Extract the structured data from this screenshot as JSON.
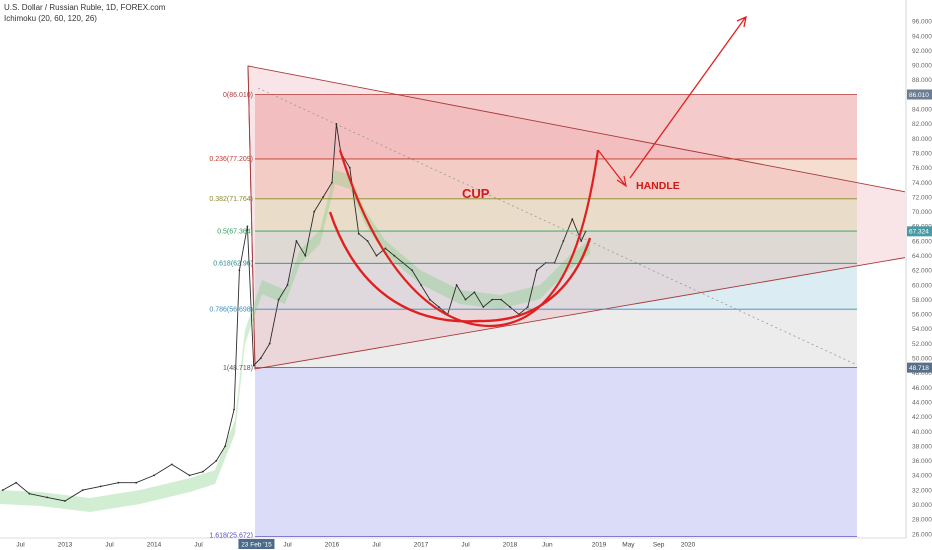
{
  "header": {
    "symbol_line": "U.S. Dollar / Russian Ruble, 1D, FOREX.com",
    "indicator_line": "Ichimoku (20, 60, 120, 26)"
  },
  "chart_data": {
    "type": "line",
    "title": "U.S. Dollar / Russian Ruble, 1D, FOREX.com",
    "ylim": [
      26,
      97
    ],
    "y_ticks": [
      "96.000",
      "94.000",
      "92.000",
      "90.000",
      "88.000",
      "86.000",
      "84.000",
      "82.000",
      "80.000",
      "78.000",
      "76.000",
      "74.000",
      "72.000",
      "70.000",
      "68.000",
      "66.000",
      "64.000",
      "62.000",
      "60.000",
      "58.000",
      "56.000",
      "54.000",
      "52.000",
      "50.000",
      "48.000",
      "46.000",
      "44.000",
      "42.000",
      "40.000",
      "38.000",
      "36.000",
      "34.000",
      "32.000",
      "30.000",
      "28.000",
      "26.000"
    ],
    "x_ticks": [
      "Jul",
      "2013",
      "Jul",
      "2014",
      "Jul",
      "23 Feb '15",
      "Jul",
      "2016",
      "Jul",
      "2017",
      "Jul",
      "2018",
      "Jun",
      "2019",
      "May",
      "Sep",
      "2020"
    ],
    "price_badges": [
      {
        "text": "86.010",
        "value": 86.01,
        "color": "#6b7c93"
      },
      {
        "text": "67.324",
        "value": 67.324,
        "color": "#4a9aa6"
      },
      {
        "text": "48.718",
        "value": 48.718,
        "color": "#5a6f8a"
      }
    ],
    "fib_levels": [
      {
        "label": "0(86.010)",
        "value": 86.01,
        "color": "#b03a3a",
        "zone": "#f2b8b8"
      },
      {
        "label": "0.236(77.209)",
        "value": 77.209,
        "color": "#c0392b",
        "zone": "#f1d2c0"
      },
      {
        "label": "0.382(71.764)",
        "value": 71.764,
        "color": "#8a8a2a",
        "zone": "#e2efc8"
      },
      {
        "label": "0.5(67.364)",
        "value": 67.364,
        "color": "#2e9d5a",
        "zone": "#cfe9da"
      },
      {
        "label": "0.618(62.96)",
        "value": 62.96,
        "color": "#2a8a8a",
        "zone": "#cfe7ee"
      },
      {
        "label": "0.786(56.698)",
        "value": 56.698,
        "color": "#3a8abf",
        "zone": "#e6e6e6"
      },
      {
        "label": "1(48.718)",
        "value": 48.718,
        "color": "#555555",
        "zone": "#cfd0f5"
      },
      {
        "label": "1.618(25.672)",
        "value": 25.672,
        "color": "#5a4fbf",
        "zone": null
      }
    ],
    "series": [
      {
        "name": "",
        "x": [
          2012.3,
          2012.45,
          2012.6,
          2012.8,
          2013.0,
          2013.2,
          2013.4,
          2013.6,
          2013.8,
          2014.0,
          2014.2,
          2014.4,
          2014.55,
          2014.7,
          2014.8,
          2014.9,
          2014.96,
          2015.05,
          2015.12,
          2015.2,
          2015.3,
          2015.4,
          2015.5,
          2015.6,
          2015.7,
          2015.8,
          2015.9,
          2016.0,
          2016.05,
          2016.1,
          2016.2,
          2016.3,
          2016.4,
          2016.5,
          2016.6,
          2016.7,
          2016.8,
          2016.9,
          2017.0,
          2017.1,
          2017.2,
          2017.3,
          2017.4,
          2017.5,
          2017.6,
          2017.7,
          2017.8,
          2017.9,
          2018.0,
          2018.1,
          2018.2,
          2018.3,
          2018.4,
          2018.5,
          2018.6,
          2018.7,
          2018.8,
          2018.85
        ],
        "values": [
          32,
          33,
          31.5,
          31,
          30.5,
          32,
          32.5,
          33,
          33,
          34,
          35.5,
          34,
          34.5,
          36,
          38,
          43,
          62,
          68,
          49,
          50,
          52,
          58,
          60,
          66,
          64,
          70,
          72,
          74,
          82,
          78,
          76,
          67,
          66,
          64,
          65,
          64,
          63,
          62,
          60,
          58,
          57,
          56,
          60,
          58,
          59,
          57,
          58,
          58,
          57,
          56,
          57,
          62,
          63,
          63,
          66,
          69,
          66,
          67.3
        ]
      }
    ],
    "annotations": [
      "CUP",
      "HANDLE"
    ]
  }
}
